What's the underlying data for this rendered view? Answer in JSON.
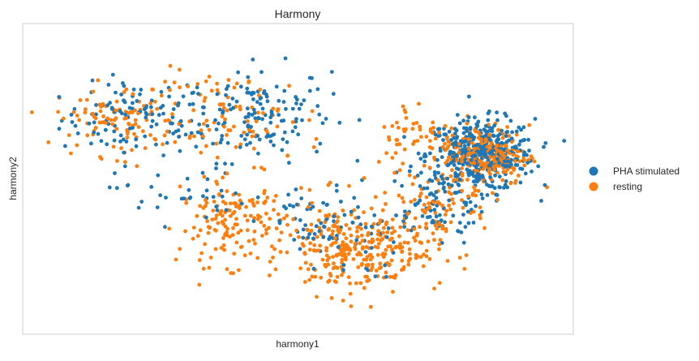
{
  "chart_data": {
    "type": "scatter",
    "title": "Harmony",
    "xlabel": "harmony1",
    "ylabel": "harmony2",
    "xlim": [
      0,
      100
    ],
    "ylim": [
      0,
      100
    ],
    "grid": false,
    "legend_position": "right",
    "series": [
      {
        "name": "PHA stimulated",
        "color": "#1f77b4",
        "clusters": [
          {
            "cx": 20,
            "cy": 70,
            "sx": 7,
            "sy": 6,
            "n": 110
          },
          {
            "cx": 42,
            "cy": 72,
            "sx": 7,
            "sy": 8,
            "n": 150
          },
          {
            "cx": 84,
            "cy": 58,
            "sx": 5,
            "sy": 6,
            "n": 420
          },
          {
            "cx": 75,
            "cy": 42,
            "sx": 5,
            "sy": 7,
            "n": 90
          },
          {
            "cx": 59,
            "cy": 30,
            "sx": 5,
            "sy": 7,
            "n": 40
          },
          {
            "cx": 28,
            "cy": 45,
            "sx": 6,
            "sy": 5,
            "n": 35
          },
          {
            "cx": 53,
            "cy": 35,
            "sx": 5,
            "sy": 6,
            "n": 40
          }
        ]
      },
      {
        "name": "resting",
        "color": "#ff7f0e",
        "clusters": [
          {
            "cx": 17,
            "cy": 70,
            "sx": 6,
            "sy": 6,
            "n": 110
          },
          {
            "cx": 39,
            "cy": 70,
            "sx": 8,
            "sy": 8,
            "n": 90
          },
          {
            "cx": 38,
            "cy": 35,
            "sx": 5,
            "sy": 7,
            "n": 150
          },
          {
            "cx": 58,
            "cy": 27,
            "sx": 5,
            "sy": 8,
            "n": 200
          },
          {
            "cx": 67,
            "cy": 26,
            "sx": 5,
            "sy": 6,
            "n": 120
          },
          {
            "cx": 85,
            "cy": 58,
            "sx": 4,
            "sy": 5,
            "n": 260
          },
          {
            "cx": 72,
            "cy": 65,
            "sx": 4,
            "sy": 6,
            "n": 50
          },
          {
            "cx": 76,
            "cy": 42,
            "sx": 5,
            "sy": 5,
            "n": 70
          }
        ]
      }
    ]
  }
}
